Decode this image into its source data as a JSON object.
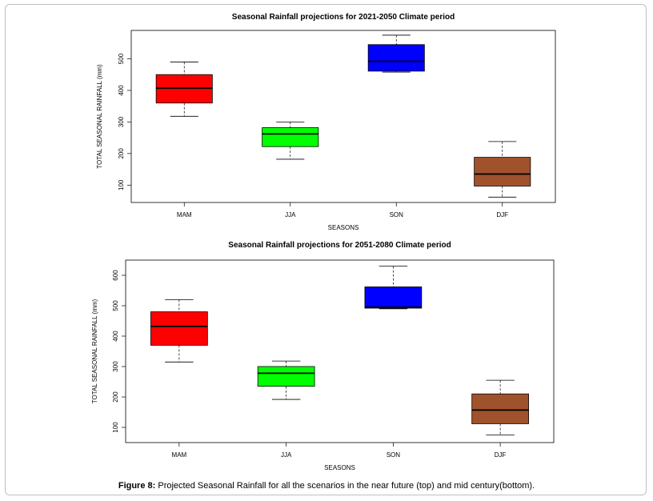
{
  "chart_data": [
    {
      "type": "box",
      "title": "Seasonal Rainfall projections for 2021-2050 Climate period",
      "xlabel": "SEASONS",
      "ylabel": "TOTAL SEASONAL RAINFALL (mm)",
      "categories": [
        "MAM",
        "JJA",
        "SON",
        "DJF"
      ],
      "yticks": [
        "100",
        "200",
        "300",
        "400",
        "500"
      ],
      "ylim": [
        45,
        590
      ],
      "colors": [
        "#ff0000",
        "#00ff00",
        "#0000ff",
        "#a0522d"
      ],
      "boxes": [
        {
          "min": 318,
          "q1": 360,
          "median": 407,
          "q3": 450,
          "max": 490
        },
        {
          "min": 182,
          "q1": 222,
          "median": 262,
          "q3": 282,
          "max": 300
        },
        {
          "min": 458,
          "q1": 461,
          "median": 492,
          "q3": 545,
          "max": 575
        },
        {
          "min": 62,
          "q1": 97,
          "median": 135,
          "q3": 188,
          "max": 238
        }
      ]
    },
    {
      "type": "box",
      "title": "Seasonal Rainfall projections for 2051-2080 Climate period",
      "xlabel": "SEASONS",
      "ylabel": "TOTAL SEASONAL RAINFALL (mm)",
      "categories": [
        "MAM",
        "JJA",
        "SON",
        "DJF"
      ],
      "yticks": [
        "100",
        "200",
        "300",
        "400",
        "500",
        "600"
      ],
      "ylim": [
        50,
        650
      ],
      "colors": [
        "#ff0000",
        "#00ff00",
        "#0000ff",
        "#a0522d"
      ],
      "boxes": [
        {
          "min": 315,
          "q1": 370,
          "median": 432,
          "q3": 480,
          "max": 520
        },
        {
          "min": 192,
          "q1": 235,
          "median": 278,
          "q3": 300,
          "max": 318
        },
        {
          "min": 490,
          "q1": 492,
          "median": 495,
          "q3": 562,
          "max": 630
        },
        {
          "min": 75,
          "q1": 112,
          "median": 157,
          "q3": 210,
          "max": 255
        }
      ]
    }
  ],
  "caption": {
    "label": "Figure 8:",
    "text": " Projected Seasonal Rainfall for all the scenarios in the near future (top) and mid century(bottom)."
  }
}
